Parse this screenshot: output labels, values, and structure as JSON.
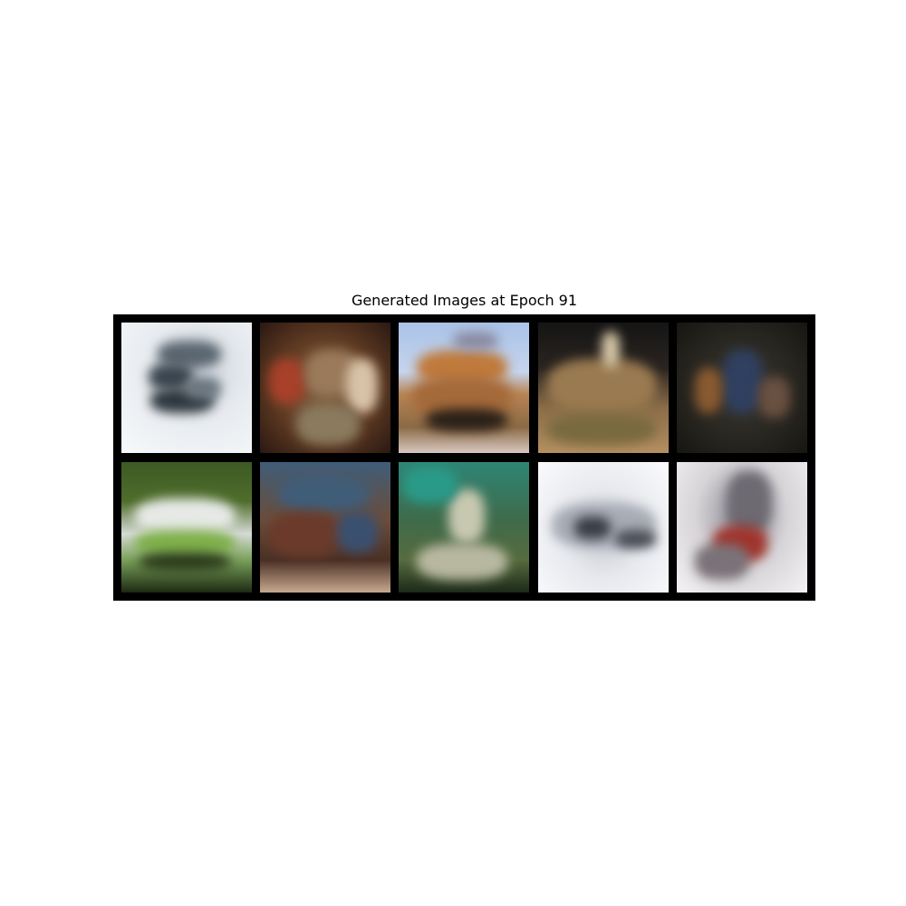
{
  "figure": {
    "title": "Generated Images at Epoch 91"
  },
  "grid": {
    "rows": 2,
    "columns": 5,
    "background_color": "#000000",
    "samples": [
      {
        "row": 1,
        "col": 1,
        "dominant_colors": [
          "#f7f9fb",
          "#cfd5dc",
          "#3b4650"
        ]
      },
      {
        "row": 1,
        "col": 2,
        "dominant_colors": [
          "#5e3a22",
          "#8a6a4a",
          "#c9a58a"
        ]
      },
      {
        "row": 1,
        "col": 3,
        "dominant_colors": [
          "#a9c3e8",
          "#b88454",
          "#2a2420"
        ]
      },
      {
        "row": 1,
        "col": 4,
        "dominant_colors": [
          "#151515",
          "#8a6d48",
          "#b59060"
        ]
      },
      {
        "row": 1,
        "col": 5,
        "dominant_colors": [
          "#27251f",
          "#2f4060",
          "#8a5a30"
        ]
      },
      {
        "row": 2,
        "col": 1,
        "dominant_colors": [
          "#3c5a23",
          "#d6dbd6",
          "#7fb04a"
        ]
      },
      {
        "row": 2,
        "col": 2,
        "dominant_colors": [
          "#405d78",
          "#6b4d3a",
          "#c7a98f"
        ]
      },
      {
        "row": 2,
        "col": 3,
        "dominant_colors": [
          "#2e8575",
          "#566b3f",
          "#c8c8b0"
        ]
      },
      {
        "row": 2,
        "col": 4,
        "dominant_colors": [
          "#fbfbfd",
          "#c9ccd3",
          "#3a3d45"
        ]
      },
      {
        "row": 2,
        "col": 5,
        "dominant_colors": [
          "#f4f2f4",
          "#6d6a72",
          "#a0342c"
        ]
      }
    ]
  }
}
